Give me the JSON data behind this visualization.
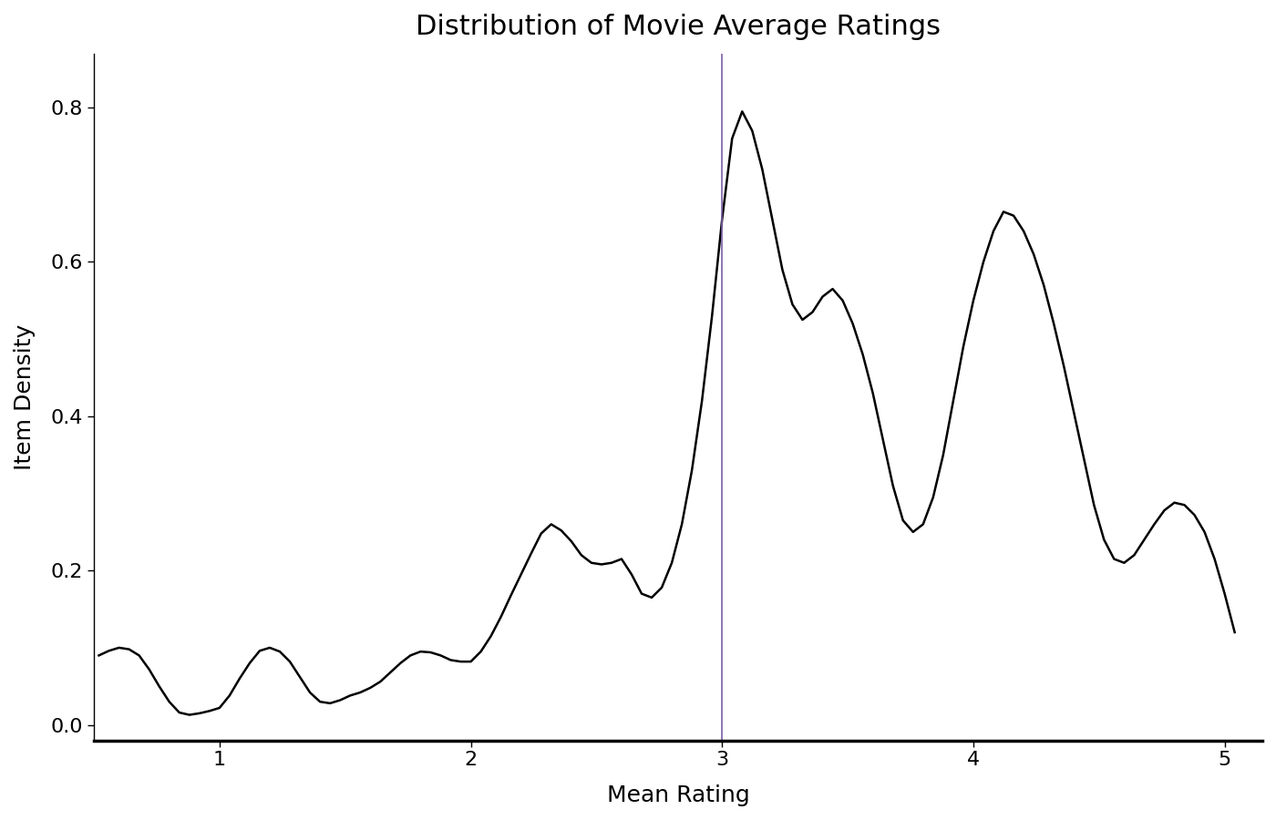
{
  "title": "Distribution of Movie Average Ratings",
  "xlabel": "Mean Rating",
  "ylabel": "Item Density",
  "vline_x": 3.0,
  "vline_color": "#7b5ea7",
  "line_color": "#000000",
  "background_color": "#ffffff",
  "xlim": [
    0.5,
    5.15
  ],
  "ylim": [
    -0.02,
    0.87
  ],
  "xticks": [
    1,
    2,
    3,
    4,
    5
  ],
  "yticks": [
    0.0,
    0.2,
    0.4,
    0.6,
    0.8
  ],
  "title_fontsize": 22,
  "label_fontsize": 18,
  "tick_fontsize": 16,
  "line_width": 1.8,
  "kde_x": [
    0.52,
    0.56,
    0.6,
    0.64,
    0.68,
    0.72,
    0.76,
    0.8,
    0.84,
    0.88,
    0.92,
    0.96,
    1.0,
    1.04,
    1.08,
    1.12,
    1.16,
    1.2,
    1.24,
    1.28,
    1.32,
    1.36,
    1.4,
    1.44,
    1.48,
    1.52,
    1.56,
    1.6,
    1.64,
    1.68,
    1.72,
    1.76,
    1.8,
    1.84,
    1.88,
    1.92,
    1.96,
    2.0,
    2.04,
    2.08,
    2.12,
    2.16,
    2.2,
    2.24,
    2.28,
    2.32,
    2.36,
    2.4,
    2.44,
    2.48,
    2.52,
    2.56,
    2.6,
    2.64,
    2.68,
    2.72,
    2.76,
    2.8,
    2.84,
    2.88,
    2.92,
    2.96,
    3.0,
    3.04,
    3.08,
    3.12,
    3.16,
    3.2,
    3.24,
    3.28,
    3.32,
    3.36,
    3.4,
    3.44,
    3.48,
    3.52,
    3.56,
    3.6,
    3.64,
    3.68,
    3.72,
    3.76,
    3.8,
    3.84,
    3.88,
    3.92,
    3.96,
    4.0,
    4.04,
    4.08,
    4.12,
    4.16,
    4.2,
    4.24,
    4.28,
    4.32,
    4.36,
    4.4,
    4.44,
    4.48,
    4.52,
    4.56,
    4.6,
    4.64,
    4.68,
    4.72,
    4.76,
    4.8,
    4.84,
    4.88,
    4.92,
    4.96,
    5.0,
    5.04
  ],
  "kde_y": [
    0.09,
    0.096,
    0.1,
    0.098,
    0.09,
    0.072,
    0.05,
    0.03,
    0.016,
    0.013,
    0.015,
    0.018,
    0.022,
    0.038,
    0.06,
    0.08,
    0.096,
    0.1,
    0.095,
    0.082,
    0.062,
    0.042,
    0.03,
    0.028,
    0.032,
    0.038,
    0.042,
    0.048,
    0.056,
    0.068,
    0.08,
    0.09,
    0.095,
    0.094,
    0.09,
    0.084,
    0.082,
    0.082,
    0.095,
    0.115,
    0.14,
    0.168,
    0.195,
    0.222,
    0.248,
    0.26,
    0.252,
    0.238,
    0.22,
    0.21,
    0.208,
    0.21,
    0.215,
    0.195,
    0.17,
    0.165,
    0.178,
    0.21,
    0.26,
    0.33,
    0.42,
    0.53,
    0.655,
    0.76,
    0.795,
    0.77,
    0.72,
    0.655,
    0.59,
    0.545,
    0.525,
    0.535,
    0.555,
    0.565,
    0.55,
    0.52,
    0.48,
    0.43,
    0.37,
    0.31,
    0.265,
    0.25,
    0.26,
    0.295,
    0.35,
    0.42,
    0.49,
    0.55,
    0.6,
    0.64,
    0.665,
    0.66,
    0.64,
    0.61,
    0.57,
    0.52,
    0.465,
    0.405,
    0.345,
    0.285,
    0.24,
    0.215,
    0.21,
    0.22,
    0.24,
    0.26,
    0.278,
    0.288,
    0.285,
    0.272,
    0.25,
    0.215,
    0.17,
    0.12
  ]
}
